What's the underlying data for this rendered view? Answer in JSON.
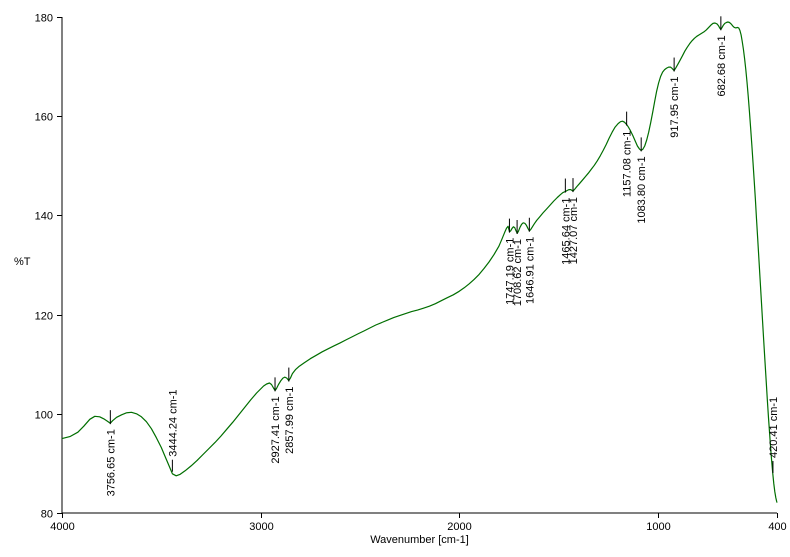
{
  "chart_data": {
    "type": "line",
    "title": "",
    "xlabel": "Wavenumber [cm-1]",
    "ylabel": "%T",
    "xlim": [
      4000,
      400
    ],
    "ylim": [
      80,
      180
    ],
    "x_axis_reversed": true,
    "grid": false,
    "x_ticks": [
      4000,
      3000,
      2000,
      1000,
      400
    ],
    "y_ticks": [
      80,
      100,
      120,
      140,
      160,
      180
    ],
    "line_color": "#006e00",
    "axis_color": "#000000",
    "peaks": [
      {
        "wavenumber": 3756.65,
        "label": "3756.65 cm-1",
        "side": "below"
      },
      {
        "wavenumber": 3444.24,
        "label": "3444.24 cm-1",
        "side": "above"
      },
      {
        "wavenumber": 2927.41,
        "label": "2927.41 cm-1",
        "side": "below"
      },
      {
        "wavenumber": 2857.99,
        "label": "2857.99 cm-1",
        "side": "below"
      },
      {
        "wavenumber": 1747.19,
        "label": "1747.19 cm-1",
        "side": "below"
      },
      {
        "wavenumber": 1708.62,
        "label": "1708.62 cm-1",
        "side": "below"
      },
      {
        "wavenumber": 1646.91,
        "label": "1646.91 cm-1",
        "side": "below"
      },
      {
        "wavenumber": 1465.64,
        "label": "1465.64 cm-1",
        "side": "below"
      },
      {
        "wavenumber": 1427.07,
        "label": "1427.07 cm-1",
        "side": "below"
      },
      {
        "wavenumber": 1157.08,
        "label": "1157.08 cm-1",
        "side": "below"
      },
      {
        "wavenumber": 1083.8,
        "label": "1083.80 cm-1",
        "side": "below"
      },
      {
        "wavenumber": 917.95,
        "label": "917.95 cm-1",
        "side": "below"
      },
      {
        "wavenumber": 682.68,
        "label": "682.68 cm-1",
        "side": "below"
      },
      {
        "wavenumber": 420.41,
        "label": "420.41 cm-1",
        "side": "above"
      }
    ],
    "series": [
      {
        "points": [
          [
            4000,
            95.0
          ],
          [
            3960,
            95.4
          ],
          [
            3920,
            96.3
          ],
          [
            3890,
            97.5
          ],
          [
            3860,
            98.9
          ],
          [
            3835,
            99.5
          ],
          [
            3810,
            99.4
          ],
          [
            3790,
            99.0
          ],
          [
            3775,
            98.6
          ],
          [
            3757,
            98.1
          ],
          [
            3745,
            98.6
          ],
          [
            3725,
            99.3
          ],
          [
            3700,
            99.8
          ],
          [
            3675,
            100.2
          ],
          [
            3650,
            100.3
          ],
          [
            3625,
            100.0
          ],
          [
            3600,
            99.4
          ],
          [
            3575,
            98.4
          ],
          [
            3550,
            97.0
          ],
          [
            3525,
            95.2
          ],
          [
            3500,
            93.2
          ],
          [
            3480,
            91.3
          ],
          [
            3460,
            89.4
          ],
          [
            3444,
            87.9
          ],
          [
            3425,
            87.5
          ],
          [
            3405,
            87.8
          ],
          [
            3380,
            88.5
          ],
          [
            3350,
            89.5
          ],
          [
            3320,
            90.6
          ],
          [
            3290,
            91.8
          ],
          [
            3260,
            93.0
          ],
          [
            3230,
            94.2
          ],
          [
            3200,
            95.5
          ],
          [
            3170,
            96.9
          ],
          [
            3140,
            98.3
          ],
          [
            3110,
            99.8
          ],
          [
            3080,
            101.3
          ],
          [
            3050,
            102.8
          ],
          [
            3020,
            104.2
          ],
          [
            3000,
            105.0
          ],
          [
            2985,
            105.6
          ],
          [
            2970,
            106.0
          ],
          [
            2955,
            106.2
          ],
          [
            2945,
            105.9
          ],
          [
            2935,
            105.2
          ],
          [
            2927,
            104.7
          ],
          [
            2920,
            105.1
          ],
          [
            2910,
            105.9
          ],
          [
            2898,
            106.7
          ],
          [
            2888,
            107.2
          ],
          [
            2878,
            107.4
          ],
          [
            2868,
            107.2
          ],
          [
            2858,
            106.7
          ],
          [
            2850,
            107.2
          ],
          [
            2840,
            108.1
          ],
          [
            2825,
            108.9
          ],
          [
            2805,
            109.6
          ],
          [
            2780,
            110.3
          ],
          [
            2750,
            111.1
          ],
          [
            2720,
            111.8
          ],
          [
            2690,
            112.5
          ],
          [
            2660,
            113.1
          ],
          [
            2630,
            113.7
          ],
          [
            2600,
            114.3
          ],
          [
            2570,
            114.9
          ],
          [
            2540,
            115.5
          ],
          [
            2510,
            116.1
          ],
          [
            2480,
            116.7
          ],
          [
            2450,
            117.3
          ],
          [
            2420,
            117.9
          ],
          [
            2390,
            118.4
          ],
          [
            2360,
            118.9
          ],
          [
            2330,
            119.4
          ],
          [
            2300,
            119.8
          ],
          [
            2270,
            120.2
          ],
          [
            2240,
            120.6
          ],
          [
            2210,
            120.9
          ],
          [
            2180,
            121.3
          ],
          [
            2150,
            121.7
          ],
          [
            2120,
            122.2
          ],
          [
            2090,
            122.8
          ],
          [
            2060,
            123.4
          ],
          [
            2030,
            124.0
          ],
          [
            2000,
            124.7
          ],
          [
            1975,
            125.4
          ],
          [
            1950,
            126.2
          ],
          [
            1925,
            127.1
          ],
          [
            1900,
            128.1
          ],
          [
            1875,
            129.3
          ],
          [
            1850,
            130.6
          ],
          [
            1825,
            132.1
          ],
          [
            1800,
            133.8
          ],
          [
            1785,
            135.2
          ],
          [
            1772,
            136.5
          ],
          [
            1762,
            137.4
          ],
          [
            1754,
            137.8
          ],
          [
            1747,
            136.7
          ],
          [
            1741,
            136.9
          ],
          [
            1734,
            137.4
          ],
          [
            1727,
            137.7
          ],
          [
            1720,
            137.5
          ],
          [
            1714,
            136.9
          ],
          [
            1708,
            136.4
          ],
          [
            1702,
            136.8
          ],
          [
            1694,
            137.6
          ],
          [
            1686,
            138.2
          ],
          [
            1678,
            138.5
          ],
          [
            1670,
            138.4
          ],
          [
            1662,
            138.0
          ],
          [
            1654,
            137.4
          ],
          [
            1647,
            136.9
          ],
          [
            1641,
            137.1
          ],
          [
            1633,
            137.6
          ],
          [
            1622,
            138.3
          ],
          [
            1610,
            139.0
          ],
          [
            1595,
            139.7
          ],
          [
            1578,
            140.5
          ],
          [
            1560,
            141.3
          ],
          [
            1542,
            142.1
          ],
          [
            1524,
            142.9
          ],
          [
            1506,
            143.6
          ],
          [
            1490,
            144.2
          ],
          [
            1478,
            144.6
          ],
          [
            1466,
            144.8
          ],
          [
            1458,
            145.0
          ],
          [
            1448,
            145.2
          ],
          [
            1438,
            145.2
          ],
          [
            1427,
            144.9
          ],
          [
            1418,
            145.3
          ],
          [
            1408,
            145.8
          ],
          [
            1395,
            146.4
          ],
          [
            1380,
            147.1
          ],
          [
            1365,
            147.8
          ],
          [
            1350,
            148.5
          ],
          [
            1335,
            149.3
          ],
          [
            1320,
            150.1
          ],
          [
            1305,
            151.0
          ],
          [
            1290,
            152.0
          ],
          [
            1275,
            153.1
          ],
          [
            1260,
            154.3
          ],
          [
            1245,
            155.6
          ],
          [
            1230,
            156.8
          ],
          [
            1215,
            157.8
          ],
          [
            1200,
            158.5
          ],
          [
            1188,
            158.9
          ],
          [
            1178,
            159.0
          ],
          [
            1168,
            158.8
          ],
          [
            1157,
            158.3
          ],
          [
            1148,
            157.8
          ],
          [
            1138,
            157.1
          ],
          [
            1126,
            156.1
          ],
          [
            1114,
            155.0
          ],
          [
            1103,
            154.0
          ],
          [
            1093,
            153.4
          ],
          [
            1084,
            153.1
          ],
          [
            1076,
            153.3
          ],
          [
            1066,
            154.0
          ],
          [
            1056,
            155.2
          ],
          [
            1046,
            156.8
          ],
          [
            1036,
            158.7
          ],
          [
            1026,
            160.8
          ],
          [
            1016,
            163.0
          ],
          [
            1006,
            165.0
          ],
          [
            996,
            166.7
          ],
          [
            986,
            168.0
          ],
          [
            976,
            168.9
          ],
          [
            966,
            169.4
          ],
          [
            956,
            169.7
          ],
          [
            946,
            169.9
          ],
          [
            936,
            169.9
          ],
          [
            927,
            169.6
          ],
          [
            918,
            169.2
          ],
          [
            910,
            169.7
          ],
          [
            900,
            170.4
          ],
          [
            888,
            171.3
          ],
          [
            876,
            172.2
          ],
          [
            864,
            173.1
          ],
          [
            852,
            173.9
          ],
          [
            840,
            174.6
          ],
          [
            828,
            175.2
          ],
          [
            816,
            175.7
          ],
          [
            804,
            176.1
          ],
          [
            792,
            176.4
          ],
          [
            780,
            176.7
          ],
          [
            768,
            177.0
          ],
          [
            756,
            177.4
          ],
          [
            744,
            177.9
          ],
          [
            732,
            178.4
          ],
          [
            722,
            178.7
          ],
          [
            712,
            178.8
          ],
          [
            702,
            178.6
          ],
          [
            694,
            178.2
          ],
          [
            687,
            177.7
          ],
          [
            683,
            177.5
          ],
          [
            678,
            177.8
          ],
          [
            671,
            178.3
          ],
          [
            663,
            178.7
          ],
          [
            655,
            178.9
          ],
          [
            647,
            179.0
          ],
          [
            639,
            178.9
          ],
          [
            631,
            178.6
          ],
          [
            623,
            178.2
          ],
          [
            615,
            177.9
          ],
          [
            607,
            177.8
          ],
          [
            600,
            177.9
          ],
          [
            593,
            177.8
          ],
          [
            587,
            177.3
          ],
          [
            581,
            176.4
          ],
          [
            575,
            175.1
          ],
          [
            569,
            173.5
          ],
          [
            563,
            171.6
          ],
          [
            557,
            169.4
          ],
          [
            551,
            166.9
          ],
          [
            545,
            164.1
          ],
          [
            539,
            161.0
          ],
          [
            533,
            157.7
          ],
          [
            527,
            154.3
          ],
          [
            521,
            150.7
          ],
          [
            515,
            147.0
          ],
          [
            509,
            143.2
          ],
          [
            503,
            139.3
          ],
          [
            497,
            135.3
          ],
          [
            491,
            131.2
          ],
          [
            485,
            127.1
          ],
          [
            479,
            123.0
          ],
          [
            473,
            118.9
          ],
          [
            467,
            114.8
          ],
          [
            461,
            110.8
          ],
          [
            455,
            106.9
          ],
          [
            449,
            102.9
          ],
          [
            443,
            99.2
          ],
          [
            437,
            95.8
          ],
          [
            431,
            92.6
          ],
          [
            426,
            90.2
          ],
          [
            421,
            87.9
          ],
          [
            416,
            85.9
          ],
          [
            411,
            84.3
          ],
          [
            406,
            83.1
          ],
          [
            402,
            82.4
          ],
          [
            400,
            82.1
          ]
        ]
      }
    ]
  }
}
